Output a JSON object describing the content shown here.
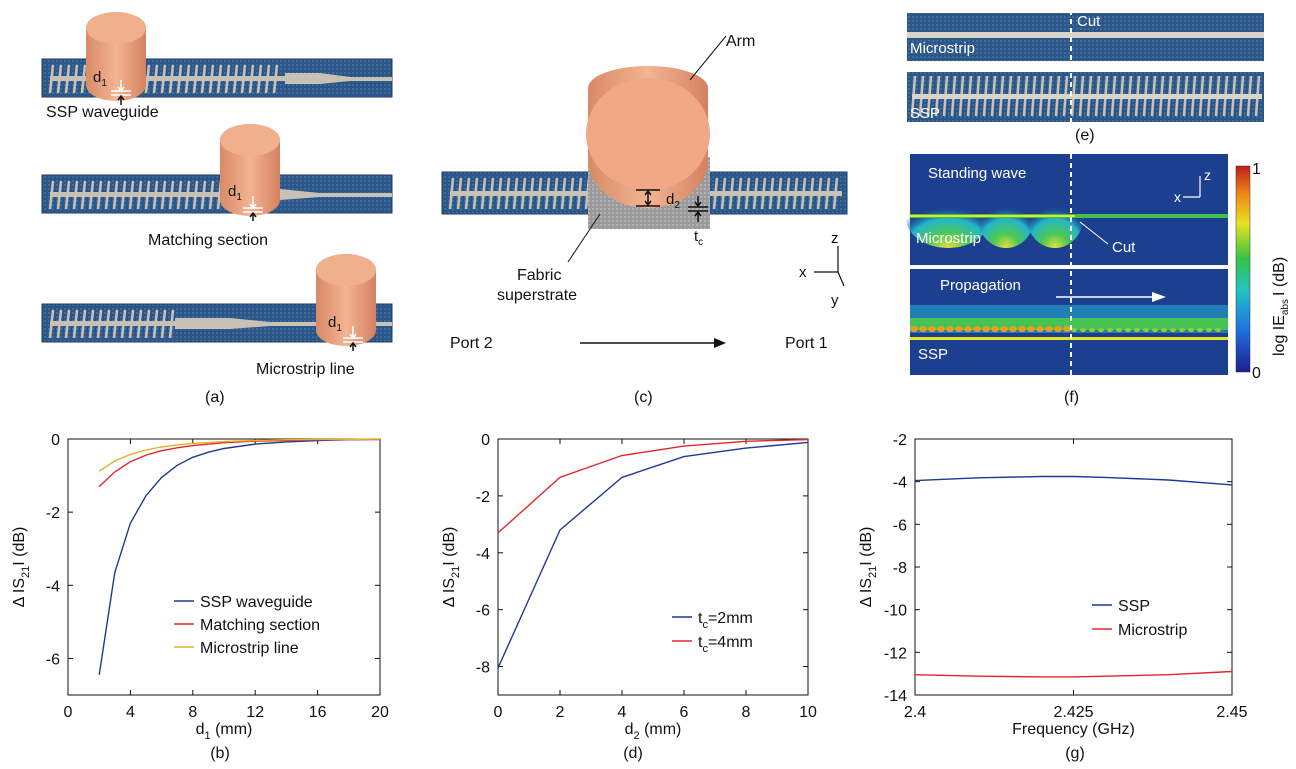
{
  "panel_a": {
    "labels": [
      "SSP waveguide",
      "Matching section",
      "Microstrip line"
    ],
    "d_label": "d",
    "d_sub": "1",
    "caption": "(a)"
  },
  "panel_c": {
    "arm": "Arm",
    "fabric_1": "Fabric",
    "fabric_2": "superstrate",
    "d_label": "d",
    "d_sub": "2",
    "t_label": "t",
    "t_sub": "c",
    "axis_z": "z",
    "axis_x": "x",
    "axis_y": "y",
    "port2": "Port 2",
    "port1": "Port 1",
    "caption": "(c)"
  },
  "panel_e": {
    "cut": "Cut",
    "microstrip": "Microstrip",
    "ssp": "SSP",
    "caption": "(e)"
  },
  "panel_f": {
    "standing_wave": "Standing wave",
    "microstrip": "Microstrip",
    "cut": "Cut",
    "propagation": "Propagation",
    "ssp": "SSP",
    "axis_z": "z",
    "axis_x": "x",
    "cbar_label": "log IE",
    "cbar_sub": "abs",
    "cbar_label_end": "I (dB)",
    "cbar_max": "1",
    "cbar_min": "0",
    "caption": "(f)"
  },
  "colors": {
    "substrate": "#2f5a8a",
    "metal": "#c9c1b6",
    "arm": "#e9a17e",
    "ssp": "#1f3a93",
    "matching": "#e3262b",
    "microstrip": "#e2b02a"
  },
  "chart_data": [
    {
      "type": "line",
      "caption": "(b)",
      "xlabel": "d",
      "xlabel_sub": "1",
      "xlabel_end": " (mm)",
      "ylabel": "Δ IS",
      "ylabel_sub": "21",
      "ylabel_end": "I (dB)",
      "xlim": [
        0,
        20
      ],
      "ylim": [
        -7,
        0
      ],
      "xticks": [
        "0",
        "4",
        "8",
        "12",
        "16",
        "20"
      ],
      "yticks": [
        "-6",
        "-4",
        "-2",
        "0"
      ],
      "legend_position": "bottom-right",
      "series": [
        {
          "name": "SSP waveguide",
          "color": "#1f3a93",
          "x": [
            2,
            3,
            4,
            5,
            6,
            7,
            8,
            9,
            10,
            12,
            14,
            16,
            18,
            20
          ],
          "y": [
            -6.45,
            -3.65,
            -2.3,
            -1.55,
            -1.05,
            -0.72,
            -0.5,
            -0.36,
            -0.26,
            -0.14,
            -0.08,
            -0.04,
            -0.02,
            -0.01
          ]
        },
        {
          "name": "Matching section",
          "color": "#e3262b",
          "x": [
            2,
            3,
            4,
            5,
            6,
            7,
            8,
            10,
            12,
            14,
            16,
            18,
            20
          ],
          "y": [
            -1.3,
            -0.9,
            -0.62,
            -0.44,
            -0.32,
            -0.24,
            -0.18,
            -0.1,
            -0.06,
            -0.04,
            -0.02,
            -0.01,
            -0.01
          ]
        },
        {
          "name": "Microstrip line",
          "color": "#e2b02a",
          "x": [
            2,
            3,
            4,
            5,
            6,
            7,
            8,
            10,
            12,
            14,
            16,
            18,
            20
          ],
          "y": [
            -0.88,
            -0.6,
            -0.42,
            -0.3,
            -0.22,
            -0.16,
            -0.12,
            -0.07,
            -0.04,
            -0.02,
            -0.01,
            -0.01,
            0
          ]
        }
      ]
    },
    {
      "type": "line",
      "caption": "(d)",
      "xlabel": "d",
      "xlabel_sub": "2",
      "xlabel_end": " (mm)",
      "ylabel": "Δ IS",
      "ylabel_sub": "21",
      "ylabel_end": "I (dB)",
      "xlim": [
        0,
        10
      ],
      "ylim": [
        -9,
        0
      ],
      "xticks": [
        "0",
        "2",
        "4",
        "6",
        "8",
        "10"
      ],
      "yticks": [
        "-8",
        "-6",
        "-4",
        "-2",
        "0"
      ],
      "legend_position": "bottom-right",
      "series": [
        {
          "name": "t",
          "name_sub": "c",
          "name_end": "=2mm",
          "color": "#1f3a93",
          "x": [
            0,
            2,
            4,
            6,
            8,
            10
          ],
          "y": [
            -8.05,
            -3.2,
            -1.35,
            -0.62,
            -0.32,
            -0.12
          ]
        },
        {
          "name": "t",
          "name_sub": "c",
          "name_end": "=4mm",
          "color": "#e3262b",
          "x": [
            0,
            2,
            4,
            6,
            8,
            10
          ],
          "y": [
            -3.3,
            -1.35,
            -0.58,
            -0.25,
            -0.08,
            -0.02
          ]
        }
      ]
    },
    {
      "type": "line",
      "caption": "(g)",
      "xlabel": "Frequency (GHz)",
      "ylabel": "Δ IS",
      "ylabel_sub": "21",
      "ylabel_end": "I (dB)",
      "xlim": [
        2.4,
        2.45
      ],
      "ylim": [
        -14,
        -2
      ],
      "xticks": [
        "2.4",
        "2.425",
        "2.45"
      ],
      "yticks": [
        "-14",
        "-12",
        "-10",
        "-8",
        "-6",
        "-4",
        "-2"
      ],
      "legend_position": "bottom-right",
      "series": [
        {
          "name": "SSP",
          "color": "#1f3a93",
          "x": [
            2.4,
            2.41,
            2.42,
            2.425,
            2.43,
            2.44,
            2.45
          ],
          "y": [
            -3.95,
            -3.82,
            -3.76,
            -3.76,
            -3.8,
            -3.92,
            -4.15
          ]
        },
        {
          "name": "Microstrip",
          "color": "#e3262b",
          "x": [
            2.4,
            2.41,
            2.42,
            2.425,
            2.43,
            2.44,
            2.45
          ],
          "y": [
            -13.05,
            -13.12,
            -13.15,
            -13.15,
            -13.12,
            -13.05,
            -12.9
          ]
        }
      ]
    }
  ]
}
